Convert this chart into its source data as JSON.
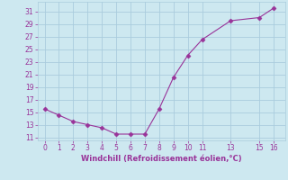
{
  "x": [
    0,
    1,
    2,
    3,
    4,
    5,
    6,
    7,
    8,
    9,
    10,
    11,
    13,
    15,
    16
  ],
  "y": [
    15.5,
    14.5,
    13.5,
    13.0,
    12.5,
    11.5,
    11.5,
    11.5,
    15.5,
    20.5,
    24.0,
    26.5,
    29.5,
    30.0,
    31.5
  ],
  "line_color": "#993399",
  "marker_color": "#993399",
  "background_color": "#cde8f0",
  "grid_color": "#aaccdd",
  "xlabel": "Windchill (Refroidissement éolien,°C)",
  "xlabel_color": "#993399",
  "tick_color": "#993399",
  "xlim": [
    -0.5,
    16.8
  ],
  "ylim": [
    10.5,
    32.5
  ],
  "yticks": [
    11,
    13,
    15,
    17,
    19,
    21,
    23,
    25,
    27,
    29,
    31
  ],
  "xticks": [
    0,
    1,
    2,
    3,
    4,
    5,
    6,
    7,
    8,
    9,
    10,
    11,
    13,
    15,
    16
  ]
}
